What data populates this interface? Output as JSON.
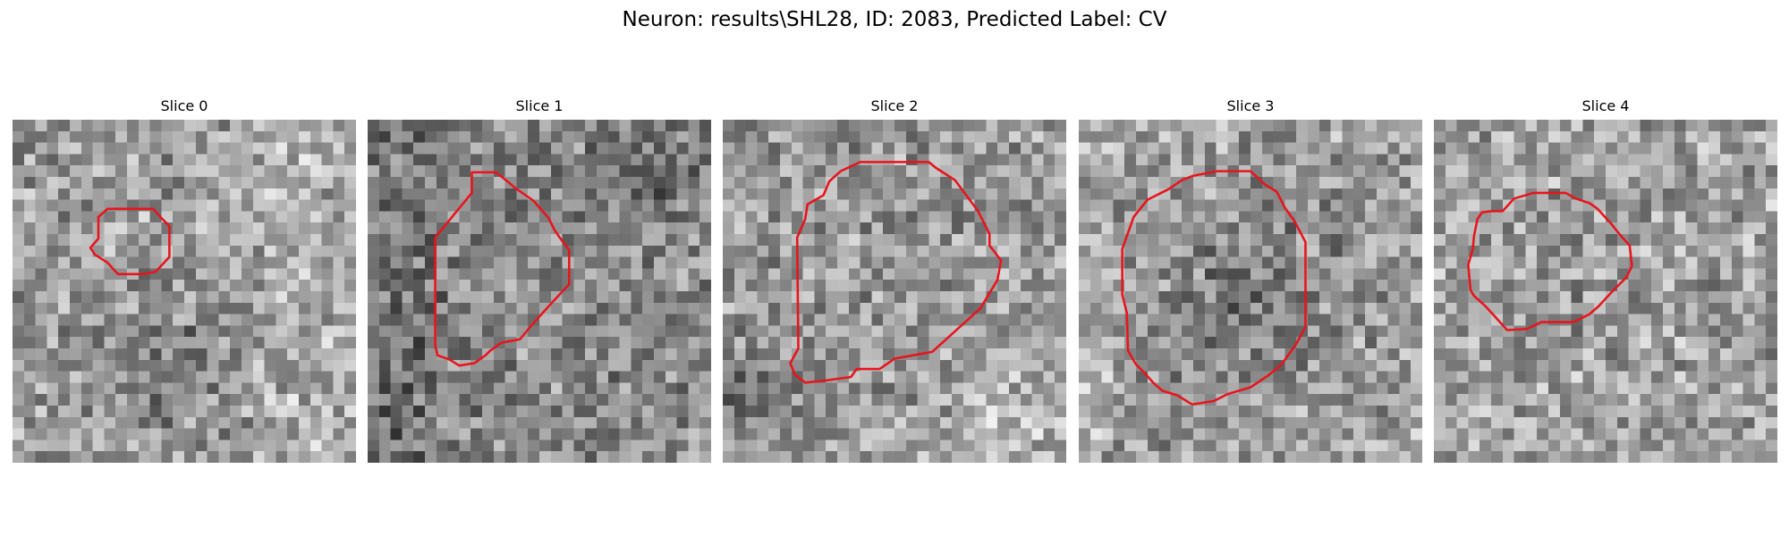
{
  "title": "Neuron: results\\SHL28, ID: 2083, Predicted Label: CV",
  "slices": [
    {
      "label": "Slice 0",
      "pattern": "darkspot-lower",
      "seed": 11
    },
    {
      "label": "Slice 1",
      "pattern": "dark-sides",
      "seed": 23
    },
    {
      "label": "Slice 2",
      "pattern": "light-right",
      "seed": 37
    },
    {
      "label": "Slice 3",
      "pattern": "dark-blob",
      "seed": 51
    },
    {
      "label": "Slice 4",
      "pattern": "uniform",
      "seed": 67
    }
  ],
  "colors": {
    "contour": "#e8141c",
    "background": "#ffffff"
  }
}
